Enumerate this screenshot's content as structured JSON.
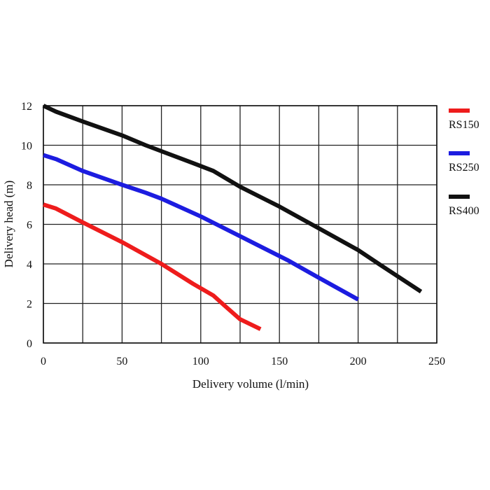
{
  "chart_data": {
    "type": "line",
    "title": "",
    "xlabel": "Delivery volume (l/min)",
    "ylabel": "Delivery head (m)",
    "xlim": [
      0,
      250
    ],
    "ylim": [
      0,
      12
    ],
    "x_ticks": [
      0,
      50,
      100,
      150,
      200,
      250
    ],
    "y_ticks": [
      0,
      2,
      4,
      6,
      8,
      10,
      12
    ],
    "grid": true,
    "grid_x_step": 25,
    "grid_y_step": 2,
    "legend_position": "right",
    "series": [
      {
        "name": "RS150",
        "color": "#ee1c1c",
        "points": [
          [
            0,
            7.0
          ],
          [
            8,
            6.8
          ],
          [
            25,
            6.1
          ],
          [
            50,
            5.1
          ],
          [
            75,
            4.0
          ],
          [
            95,
            3.0
          ],
          [
            108,
            2.4
          ],
          [
            115,
            1.9
          ],
          [
            125,
            1.2
          ],
          [
            138,
            0.7
          ]
        ]
      },
      {
        "name": "RS250",
        "color": "#1c1ce0",
        "points": [
          [
            0,
            9.5
          ],
          [
            8,
            9.3
          ],
          [
            25,
            8.7
          ],
          [
            50,
            8.0
          ],
          [
            65,
            7.6
          ],
          [
            75,
            7.3
          ],
          [
            100,
            6.4
          ],
          [
            110,
            6.0
          ],
          [
            125,
            5.4
          ],
          [
            135,
            5.0
          ],
          [
            155,
            4.2
          ],
          [
            175,
            3.3
          ],
          [
            200,
            2.2
          ]
        ]
      },
      {
        "name": "RS400",
        "color": "#111111",
        "points": [
          [
            0,
            12.0
          ],
          [
            8,
            11.7
          ],
          [
            25,
            11.2
          ],
          [
            50,
            10.5
          ],
          [
            65,
            10.0
          ],
          [
            75,
            9.7
          ],
          [
            95,
            9.1
          ],
          [
            108,
            8.7
          ],
          [
            125,
            7.9
          ],
          [
            150,
            6.9
          ],
          [
            175,
            5.8
          ],
          [
            200,
            4.7
          ],
          [
            215,
            3.9
          ],
          [
            240,
            2.6
          ]
        ]
      }
    ]
  }
}
